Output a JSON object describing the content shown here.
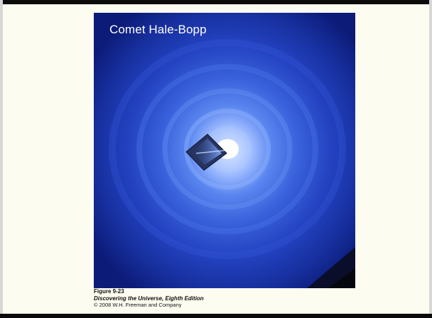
{
  "image": {
    "title": "Comet Hale-Bopp"
  },
  "caption": {
    "figure_label": "Figure 9-23",
    "book_title": "Discovering the Universe, Eighth Edition",
    "copyright": "© 2008 W.H. Freeman and Company"
  },
  "colors": {
    "background": "#fdfcf0",
    "photo_outer": "#11208a",
    "photo_mid": "#2f56d6",
    "photo_inner": "#a8c4ff",
    "nucleus": "#ffffff"
  }
}
